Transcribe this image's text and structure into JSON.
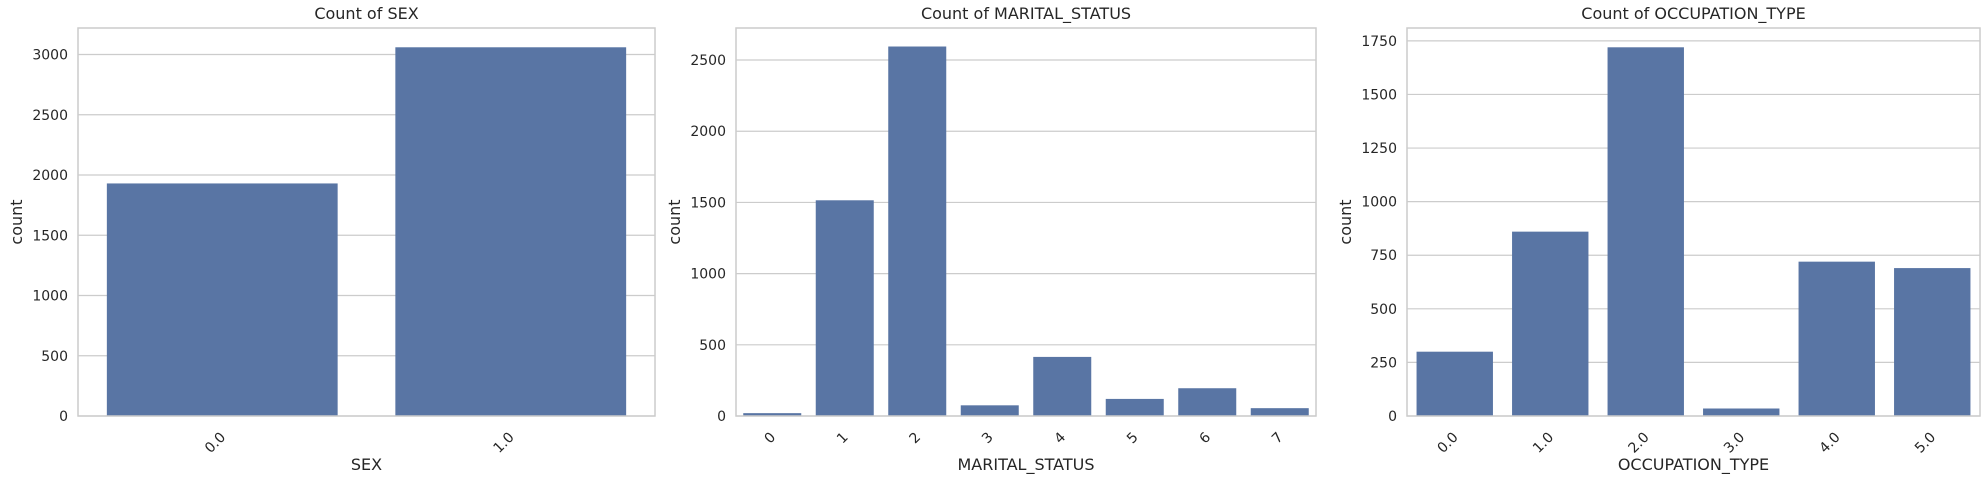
{
  "chart_data": [
    {
      "type": "bar",
      "title": "Count of SEX",
      "xlabel": "SEX",
      "ylabel": "count",
      "categories": [
        "0.0",
        "1.0"
      ],
      "values": [
        1930,
        3060
      ],
      "ylim": [
        0,
        3220
      ],
      "yticks": [
        0,
        500,
        1000,
        1500,
        2000,
        2500,
        3000
      ],
      "grid": true,
      "bar_color": "#5975a4",
      "xtick_rotation": 45
    },
    {
      "type": "bar",
      "title": "Count of MARITAL_STATUS",
      "xlabel": "MARITAL_STATUS",
      "ylabel": "count",
      "categories": [
        "0",
        "1",
        "2",
        "3",
        "4",
        "5",
        "6",
        "7"
      ],
      "values": [
        20,
        1515,
        2595,
        75,
        415,
        120,
        195,
        55
      ],
      "ylim": [
        0,
        2725
      ],
      "yticks": [
        0,
        500,
        1000,
        1500,
        2000,
        2500
      ],
      "grid": true,
      "bar_color": "#5975a4",
      "xtick_rotation": 45
    },
    {
      "type": "bar",
      "title": "Count of OCCUPATION_TYPE",
      "xlabel": "OCCUPATION_TYPE",
      "ylabel": "count",
      "categories": [
        "0.0",
        "1.0",
        "2.0",
        "3.0",
        "4.0",
        "5.0"
      ],
      "values": [
        300,
        860,
        1720,
        35,
        720,
        690
      ],
      "ylim": [
        0,
        1810
      ],
      "yticks": [
        0,
        250,
        500,
        750,
        1000,
        1250,
        1500,
        1750
      ],
      "grid": true,
      "bar_color": "#5975a4",
      "xtick_rotation": 45
    }
  ]
}
